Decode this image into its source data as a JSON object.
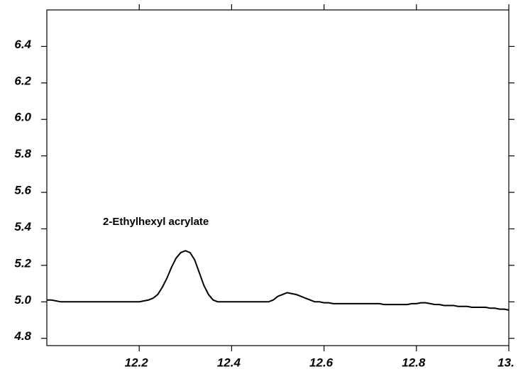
{
  "chart_data": {
    "type": "line",
    "annotation": "2-Ethylhexyl acrylate",
    "x": [
      12,
      12.01,
      12.02,
      12.03,
      12.04,
      12.05,
      12.06,
      12.07,
      12.08,
      12.09,
      12.1,
      12.11,
      12.12,
      12.13,
      12.14,
      12.15,
      12.16,
      12.17,
      12.18,
      12.19,
      12.2,
      12.21,
      12.22,
      12.23,
      12.24,
      12.25,
      12.26,
      12.27,
      12.28,
      12.29,
      12.3,
      12.31,
      12.32,
      12.33,
      12.34,
      12.35,
      12.36,
      12.37,
      12.38,
      12.39,
      12.4,
      12.41,
      12.42,
      12.43,
      12.44,
      12.45,
      12.46,
      12.47,
      12.48,
      12.49,
      12.5,
      12.51,
      12.52,
      12.53,
      12.54,
      12.55,
      12.56,
      12.57,
      12.58,
      12.59,
      12.6,
      12.61,
      12.62,
      12.63,
      12.64,
      12.65,
      12.66,
      12.67,
      12.68,
      12.69,
      12.7,
      12.71,
      12.72,
      12.73,
      12.74,
      12.75,
      12.76,
      12.77,
      12.78,
      12.79,
      12.8,
      12.81,
      12.82,
      12.83,
      12.84,
      12.85,
      12.86,
      12.87,
      12.88,
      12.89,
      12.9,
      12.91,
      12.92,
      12.93,
      12.94,
      12.95,
      12.96,
      12.97,
      12.98,
      12.99,
      13
    ],
    "series": [
      {
        "color": "#000000",
        "values": [
          5.01,
          5.01,
          5.005,
          5.0,
          5.0,
          5.0,
          5.0,
          5.0,
          5.0,
          5.0,
          5.0,
          5.0,
          5.0,
          5.0,
          5.0,
          5.0,
          5.0,
          5.0,
          5.0,
          5.0,
          5.0,
          5.005,
          5.01,
          5.02,
          5.04,
          5.08,
          5.13,
          5.19,
          5.24,
          5.27,
          5.28,
          5.27,
          5.23,
          5.16,
          5.09,
          5.04,
          5.01,
          5.0,
          5.0,
          5.0,
          5.0,
          5.0,
          5.0,
          5.0,
          5.0,
          5.0,
          5.0,
          5.0,
          5.0,
          5.01,
          5.03,
          5.04,
          5.05,
          5.045,
          5.04,
          5.03,
          5.02,
          5.01,
          5.0,
          5.0,
          4.995,
          4.995,
          4.99,
          4.99,
          4.99,
          4.99,
          4.99,
          4.99,
          4.99,
          4.99,
          4.99,
          4.99,
          4.99,
          4.985,
          4.985,
          4.985,
          4.985,
          4.985,
          4.985,
          4.99,
          4.99,
          4.995,
          4.995,
          4.99,
          4.985,
          4.985,
          4.98,
          4.98,
          4.98,
          4.975,
          4.975,
          4.975,
          4.97,
          4.97,
          4.97,
          4.97,
          4.965,
          4.965,
          4.96,
          4.96,
          4.955
        ]
      }
    ],
    "xlim": [
      12,
      13
    ],
    "xticks": [
      12.2,
      12.4,
      12.6,
      12.8,
      {
        "value": 13,
        "label": "13."
      }
    ],
    "ylim": [
      4.76,
      6.6
    ],
    "yticks": [
      {
        "value": 4.8,
        "label": "4.8"
      },
      {
        "value": 5.0,
        "label": "5.0"
      },
      5.2,
      5.4,
      5.6,
      5.8,
      {
        "value": 6.0,
        "label": "6.0"
      },
      6.2,
      6.4
    ]
  }
}
